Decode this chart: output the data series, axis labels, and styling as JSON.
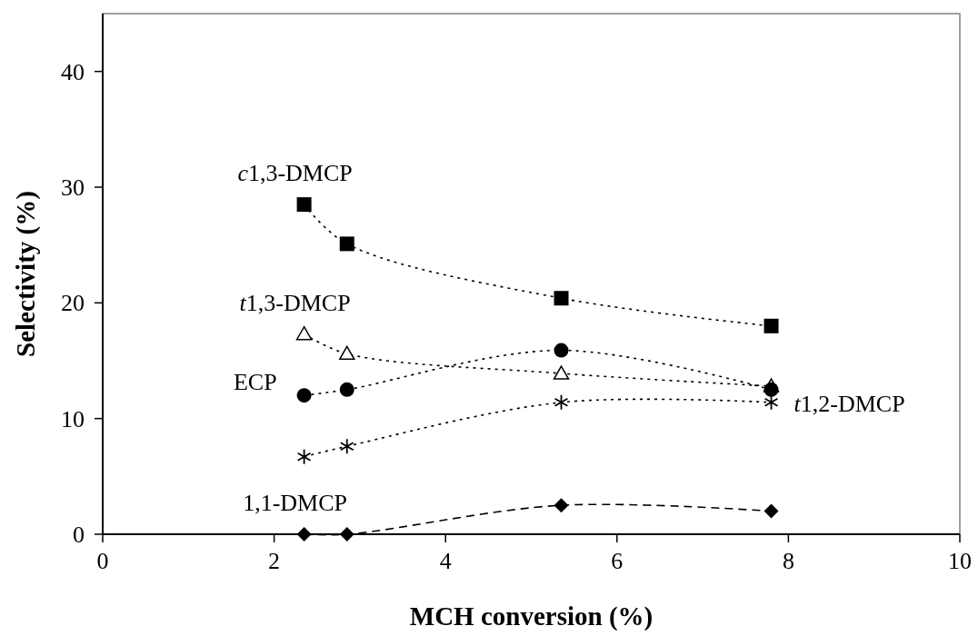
{
  "chart_data": {
    "type": "line",
    "xlabel": "MCH conversion (%)",
    "ylabel": "Selectivity (%)",
    "x": [
      2.35,
      2.85,
      5.35,
      7.8
    ],
    "series": [
      {
        "name": "c1,3-DMCP",
        "color": "#000000",
        "marker": "square",
        "line_style": "dotted",
        "values": [
          28.5,
          25.1,
          20.4,
          18.0
        ]
      },
      {
        "name": "t1,3-DMCP",
        "color": "#000000",
        "marker": "triangle",
        "line_style": "dotted",
        "values": [
          17.3,
          15.6,
          13.9,
          12.8
        ]
      },
      {
        "name": "ECP",
        "color": "#000000",
        "marker": "circle",
        "line_style": "dotted",
        "values": [
          12.0,
          12.5,
          15.9,
          12.5
        ]
      },
      {
        "name": "t1,2-DMCP",
        "color": "#000000",
        "marker": "cross",
        "line_style": "dotted",
        "values": [
          6.7,
          7.6,
          11.4,
          11.4
        ]
      },
      {
        "name": "1,1-DMCP",
        "color": "#000000",
        "marker": "diamond",
        "line_style": "dashed",
        "values": [
          0,
          0,
          2.5,
          2.0
        ]
      }
    ],
    "xlim": [
      0,
      10
    ],
    "xticks": [
      0,
      2,
      4,
      6,
      8,
      10
    ],
    "ylim": [
      0,
      45
    ],
    "yticks": [
      0,
      10,
      20,
      30,
      40
    ],
    "grid": false
  }
}
